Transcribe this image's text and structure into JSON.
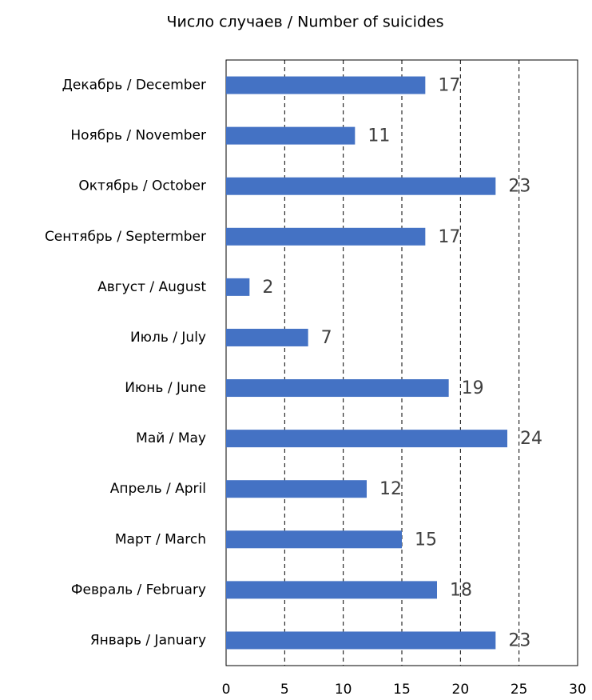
{
  "chart_data": {
    "type": "bar",
    "orientation": "horizontal",
    "title": "Число случаев / Number of suicides",
    "categories": [
      "Январь / January",
      "Февраль / February",
      "Март / March",
      "Апрель / April",
      "Май / May",
      "Июнь / June",
      "Июль / July",
      "Август / August",
      "Сентябрь / Septermber",
      "Октябрь / October",
      "Ноябрь / November",
      "Декабрь / December"
    ],
    "values": [
      23,
      18,
      15,
      12,
      24,
      19,
      7,
      2,
      17,
      23,
      11,
      17
    ],
    "color": "#4472c4",
    "xlim": [
      0,
      30
    ],
    "xticks": [
      0,
      5,
      10,
      15,
      20,
      25,
      30
    ],
    "grid": true
  }
}
